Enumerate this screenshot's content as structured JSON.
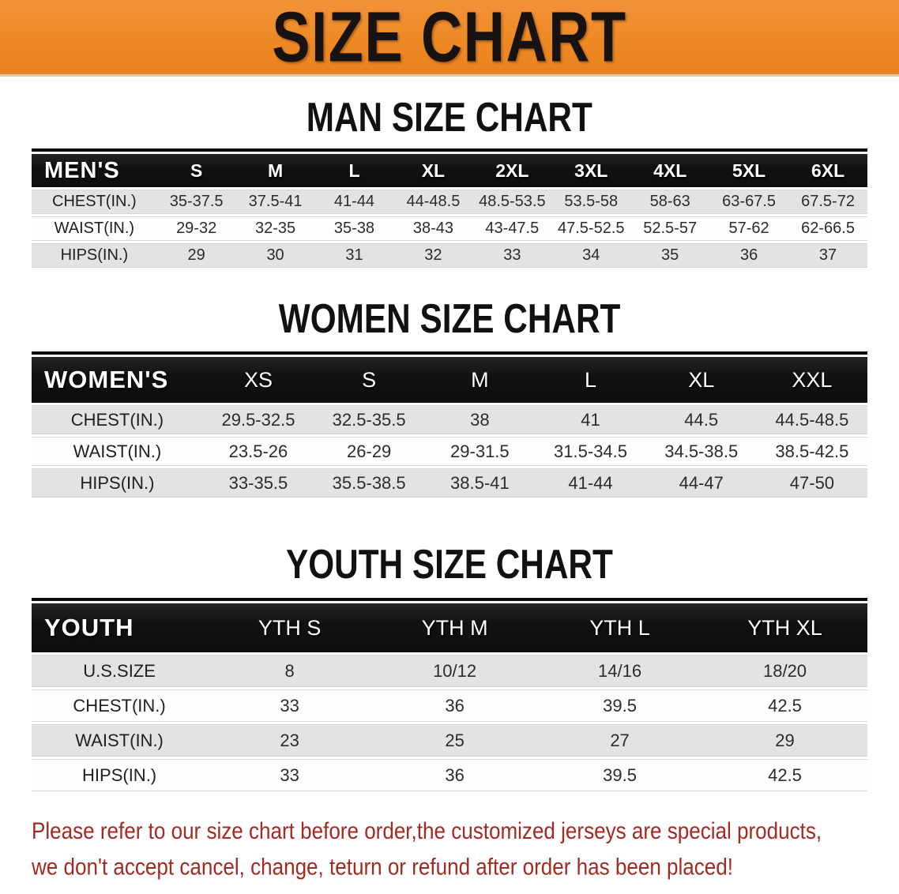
{
  "banner": {
    "title": "SIZE CHART",
    "bg_color": "#EE8A25",
    "text_color": "#181210"
  },
  "colors": {
    "header_bar_black": "#121212",
    "row_gray": "#E3E3E3",
    "row_white": "#FDFDFD",
    "footer_red": "#A32A20"
  },
  "sections": [
    {
      "id": "men",
      "heading": "MAN SIZE CHART",
      "corner_label": "MEN'S",
      "columns": [
        "S",
        "M",
        "L",
        "XL",
        "2XL",
        "3XL",
        "4XL",
        "5XL",
        "6XL"
      ],
      "rows": [
        {
          "label": "CHEST(IN.)",
          "values": [
            "35-37.5",
            "37.5-41",
            "41-44",
            "44-48.5",
            "48.5-53.5",
            "53.5-58",
            "58-63",
            "63-67.5",
            "67.5-72"
          ]
        },
        {
          "label": "WAIST(IN.)",
          "values": [
            "29-32",
            "32-35",
            "35-38",
            "38-43",
            "43-47.5",
            "47.5-52.5",
            "52.5-57",
            "57-62",
            "62-66.5"
          ]
        },
        {
          "label": "HIPS(IN.)",
          "values": [
            "29",
            "30",
            "31",
            "32",
            "33",
            "34",
            "35",
            "36",
            "37"
          ]
        }
      ]
    },
    {
      "id": "women",
      "heading": "WOMEN SIZE CHART",
      "corner_label": "WOMEN'S",
      "columns": [
        "XS",
        "S",
        "M",
        "L",
        "XL",
        "XXL"
      ],
      "rows": [
        {
          "label": "CHEST(IN.)",
          "values": [
            "29.5-32.5",
            "32.5-35.5",
            "38",
            "41",
            "44.5",
            "44.5-48.5"
          ]
        },
        {
          "label": "WAIST(IN.)",
          "values": [
            "23.5-26",
            "26-29",
            "29-31.5",
            "31.5-34.5",
            "34.5-38.5",
            "38.5-42.5"
          ]
        },
        {
          "label": "HIPS(IN.)",
          "values": [
            "33-35.5",
            "35.5-38.5",
            "38.5-41",
            "41-44",
            "44-47",
            "47-50"
          ]
        }
      ]
    },
    {
      "id": "youth",
      "heading": "YOUTH SIZE CHART",
      "corner_label": "YOUTH",
      "columns": [
        "YTH S",
        "YTH M",
        "YTH L",
        "YTH XL"
      ],
      "rows": [
        {
          "label": "U.S.SIZE",
          "values": [
            "8",
            "10/12",
            "14/16",
            "18/20"
          ]
        },
        {
          "label": "CHEST(IN.)",
          "values": [
            "33",
            "36",
            "39.5",
            "42.5"
          ]
        },
        {
          "label": "WAIST(IN.)",
          "values": [
            "23",
            "25",
            "27",
            "29"
          ]
        },
        {
          "label": "HIPS(IN.)",
          "values": [
            "33",
            "36",
            "39.5",
            "42.5"
          ]
        }
      ]
    }
  ],
  "footer": {
    "line1": "Please refer to our size chart before order,the customized jerseys are special products,",
    "line2": "we don't accept cancel, change, teturn or refund after order has been placed!"
  }
}
